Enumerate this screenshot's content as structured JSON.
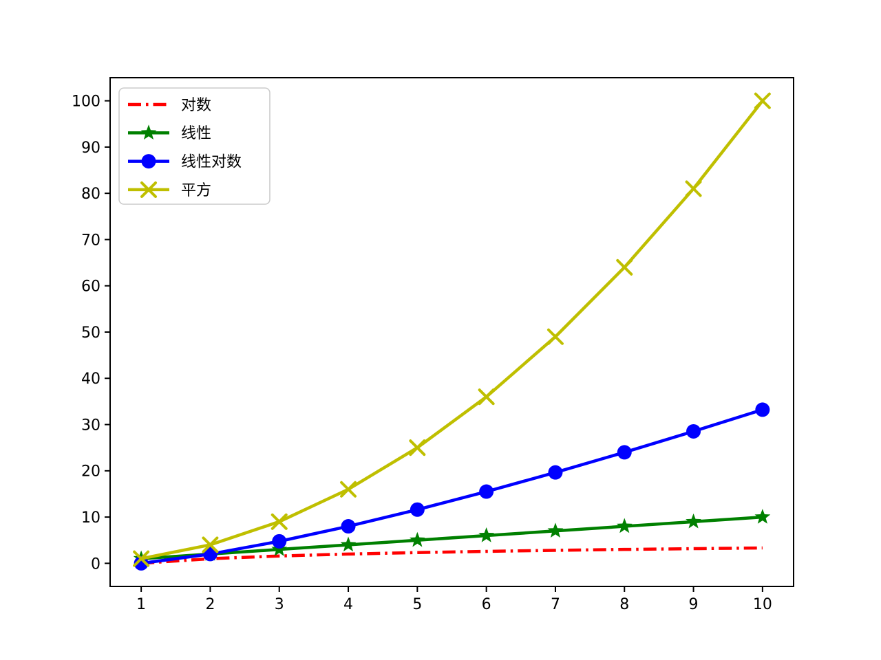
{
  "chart_data": {
    "type": "line",
    "title": "",
    "xlabel": "",
    "ylabel": "",
    "grid": false,
    "background_color": "#ffffff",
    "axis_color": "#000000",
    "x": [
      1,
      2,
      3,
      4,
      5,
      6,
      7,
      8,
      9,
      10
    ],
    "series": [
      {
        "name": "对数",
        "color": "#ff0000",
        "linestyle": "dashdot",
        "marker": "none",
        "values": [
          0.0,
          1.0,
          1.585,
          2.0,
          2.322,
          2.585,
          2.807,
          3.0,
          3.17,
          3.322
        ]
      },
      {
        "name": "线性",
        "color": "#008000",
        "linestyle": "solid",
        "marker": "star",
        "values": [
          1,
          2,
          3,
          4,
          5,
          6,
          7,
          8,
          9,
          10
        ]
      },
      {
        "name": "线性对数",
        "color": "#0000ff",
        "linestyle": "solid",
        "marker": "circle",
        "values": [
          0.0,
          2.0,
          4.755,
          8.0,
          11.61,
          15.51,
          19.651,
          24.0,
          28.529,
          33.219
        ]
      },
      {
        "name": "平方",
        "color": "#bfbf00",
        "linestyle": "solid",
        "marker": "x",
        "values": [
          1,
          4,
          9,
          16,
          25,
          36,
          49,
          64,
          81,
          100
        ]
      }
    ],
    "xticks": [
      "1",
      "2",
      "3",
      "4",
      "5",
      "6",
      "7",
      "8",
      "9",
      "10"
    ],
    "xtick_values": [
      1,
      2,
      3,
      4,
      5,
      6,
      7,
      8,
      9,
      10
    ],
    "yticks": [
      "0",
      "10",
      "20",
      "30",
      "40",
      "50",
      "60",
      "70",
      "80",
      "90",
      "100"
    ],
    "ytick_values": [
      0,
      10,
      20,
      30,
      40,
      50,
      60,
      70,
      80,
      90,
      100
    ],
    "xlim": [
      0.55,
      10.45
    ],
    "ylim": [
      -5,
      105
    ],
    "legend": {
      "position": "upper-left",
      "frame_color": "#cccccc",
      "entries": [
        "对数",
        "线性",
        "线性对数",
        "平方"
      ]
    }
  }
}
